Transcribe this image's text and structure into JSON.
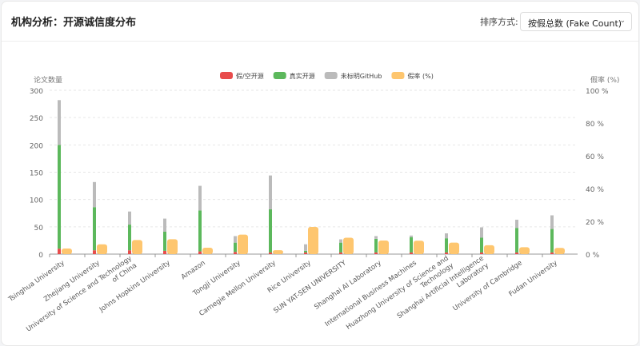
{
  "header": {
    "title": "机构分析：开源诚信度分布",
    "sort_label": "排序方式:",
    "sort_value": "按假总数 (Fake Count)"
  },
  "chart_data": {
    "type": "bar",
    "ylabel": "论文数量",
    "y2label": "假率 (%)",
    "ylim": [
      0,
      300
    ],
    "y2lim": [
      0,
      100
    ],
    "yticks": [
      0,
      50,
      100,
      150,
      200,
      250,
      300
    ],
    "y2ticks": [
      "0 %",
      "20 %",
      "40 %",
      "60 %",
      "80 %",
      "100 %"
    ],
    "grid": true,
    "legend_position": "top",
    "categories": [
      "Tsinghua University",
      "Zhejiang University",
      "University of Science and Technology of China",
      "Johns Hopkins University",
      "Amazon",
      "Tongji University",
      "Carnegie Mellon University",
      "Rice University",
      "SUN YAT-SEN UNIVERSITY",
      "Shanghai AI Laboratory",
      "International Business Machines",
      "Huazhong University of Science and Technology",
      "Shanghai Artificial Intelligence Laboratory",
      "University of Cambridge",
      "Fudan University"
    ],
    "series": [
      {
        "name": "假/空开源",
        "stack": "papers",
        "color": "#e84c4c",
        "values": [
          10,
          7,
          7,
          6,
          5,
          4,
          3,
          3,
          3,
          3,
          3,
          3,
          3,
          3,
          3
        ]
      },
      {
        "name": "真实开源",
        "stack": "papers",
        "color": "#5cb85c",
        "values": [
          190,
          79,
          47,
          35,
          75,
          17,
          79,
          3,
          18,
          25,
          28,
          26,
          27,
          45,
          43
        ]
      },
      {
        "name": "未标明GitHub",
        "stack": "papers",
        "color": "#bbbbbb",
        "values": [
          82,
          46,
          24,
          24,
          45,
          12,
          62,
          12,
          6,
          5,
          3,
          9,
          19,
          15,
          25
        ]
      },
      {
        "name": "假率 (%)",
        "axis": "right",
        "color": "#fec66f",
        "values": [
          3.4,
          6,
          8.6,
          9.1,
          3.9,
          11.9,
          2.4,
          16.6,
          10,
          8.3,
          8.2,
          7,
          5.4,
          4.2,
          3.8
        ]
      }
    ]
  }
}
